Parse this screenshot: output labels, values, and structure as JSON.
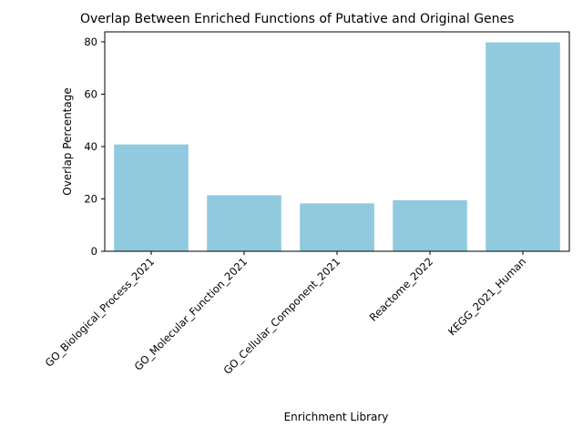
{
  "chart_data": {
    "type": "bar",
    "title": "Overlap Between Enriched Functions of Putative and Original Genes",
    "xlabel": "Enrichment Library",
    "ylabel": "Overlap Percentage",
    "categories": [
      "GO_Biological_Process_2021",
      "GO_Molecular_Function_2021",
      "GO_Cellular_Component_2021",
      "Reactome_2022",
      "KEGG_2021_Human"
    ],
    "values": [
      40.8,
      21.4,
      18.3,
      19.5,
      79.8
    ],
    "ylim": [
      0,
      83.8
    ],
    "yticks": [
      0,
      20,
      40,
      60,
      80
    ],
    "grid": false,
    "bar_color": "#91c9df"
  }
}
